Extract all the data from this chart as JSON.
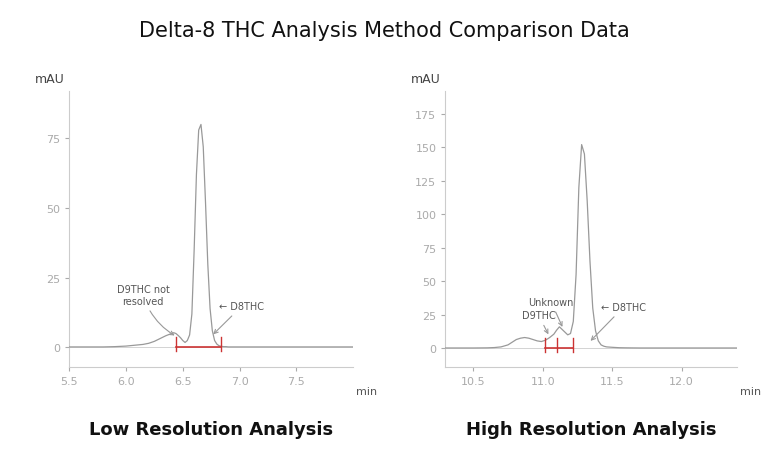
{
  "title": "Delta-8 THC Analysis Method Comparison Data",
  "title_fontsize": 15,
  "background_color": "#ffffff",
  "line_color": "#999999",
  "red_line_color": "#cc3333",
  "left_plot": {
    "xlabel": "min",
    "ylabel": "mAU",
    "xlim": [
      5.5,
      8.0
    ],
    "ylim": [
      -7,
      92
    ],
    "yticks": [
      0,
      25,
      50,
      75
    ],
    "xticks": [
      5.5,
      6.0,
      6.5,
      7.0,
      7.5
    ],
    "subtitle": "Low Resolution Analysis",
    "baseline_x": [
      5.5,
      5.8,
      5.9,
      5.95,
      6.0,
      6.05,
      6.1,
      6.15,
      6.2,
      6.25,
      6.3,
      6.35,
      6.4,
      6.42,
      6.44,
      6.46,
      6.48,
      6.5,
      6.52,
      6.54,
      6.56,
      6.58,
      6.6,
      6.62,
      6.64,
      6.66,
      6.68,
      6.7,
      6.72,
      6.74,
      6.76,
      6.78,
      6.8,
      6.82,
      6.84,
      6.86,
      6.88,
      6.9,
      6.95,
      7.0,
      7.1,
      7.5,
      8.0
    ],
    "baseline_y": [
      0.2,
      0.2,
      0.3,
      0.4,
      0.5,
      0.7,
      0.9,
      1.1,
      1.5,
      2.2,
      3.2,
      4.2,
      5.0,
      5.3,
      5.0,
      4.3,
      3.5,
      2.5,
      1.8,
      2.5,
      4.5,
      12.0,
      35.0,
      62.0,
      78.0,
      80.0,
      72.0,
      52.0,
      30.0,
      14.0,
      6.0,
      2.5,
      1.2,
      0.6,
      0.4,
      0.3,
      0.3,
      0.2,
      0.2,
      0.2,
      0.2,
      0.2,
      0.2
    ],
    "red_segment": [
      6.44,
      6.84
    ],
    "red_marks": [
      6.44,
      6.84
    ]
  },
  "right_plot": {
    "xlabel": "min",
    "ylabel": "mAU",
    "xlim": [
      10.3,
      12.4
    ],
    "ylim": [
      -14,
      192
    ],
    "yticks": [
      0,
      25,
      50,
      75,
      100,
      125,
      150,
      175
    ],
    "xticks": [
      10.5,
      11.0,
      11.5,
      12.0
    ],
    "subtitle": "High Resolution Analysis",
    "baseline_x": [
      10.3,
      10.5,
      10.6,
      10.65,
      10.7,
      10.75,
      10.78,
      10.81,
      10.84,
      10.87,
      10.9,
      10.93,
      10.96,
      10.99,
      11.02,
      11.05,
      11.08,
      11.1,
      11.12,
      11.14,
      11.16,
      11.18,
      11.2,
      11.22,
      11.24,
      11.26,
      11.28,
      11.3,
      11.32,
      11.34,
      11.36,
      11.38,
      11.4,
      11.42,
      11.44,
      11.46,
      11.5,
      11.55,
      11.6,
      11.7,
      11.8,
      12.0,
      12.4
    ],
    "baseline_y": [
      0.2,
      0.2,
      0.3,
      0.5,
      1.0,
      2.5,
      4.5,
      6.5,
      7.5,
      8.0,
      7.5,
      6.5,
      5.5,
      5.0,
      6.0,
      8.0,
      10.5,
      13.5,
      16.0,
      14.0,
      12.0,
      10.0,
      11.0,
      20.0,
      55.0,
      120.0,
      152.0,
      145.0,
      110.0,
      65.0,
      30.0,
      13.0,
      5.5,
      2.5,
      1.5,
      1.0,
      0.7,
      0.4,
      0.3,
      0.2,
      0.2,
      0.2,
      0.2
    ],
    "red_segment": [
      11.02,
      11.22
    ],
    "red_marks": [
      11.02,
      11.1,
      11.22
    ]
  }
}
